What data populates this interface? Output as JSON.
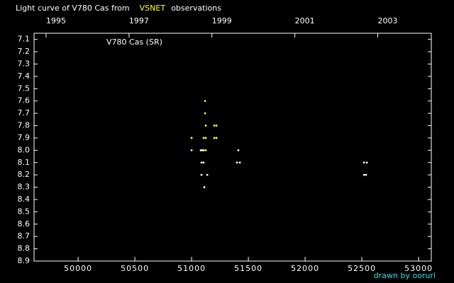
{
  "chart_data": {
    "type": "scatter",
    "title": "Light curve of V780 Cas from",
    "title_end": "observations",
    "annotation": "V780 Cas (SR)",
    "credit": "drawn by ooruri",
    "series": [
      {
        "name": "VSNET",
        "color": "#ffff33",
        "x": [
          51000,
          51000,
          51119,
          51119,
          51125,
          51106,
          51125,
          51094,
          51125,
          51200,
          51219,
          51200,
          51219
        ],
        "values": [
          7.9,
          8.0,
          7.6,
          7.7,
          7.8,
          7.9,
          7.9,
          8.0,
          8.0,
          7.8,
          7.8,
          7.9,
          7.9
        ]
      },
      {
        "color": "#ffffff",
        "x": [
          51081,
          51106,
          51087,
          51106,
          51087,
          51138,
          51112,
          51412,
          51400,
          51425,
          52519,
          52544,
          52519,
          52537
        ],
        "values": [
          8.0,
          8.0,
          8.1,
          8.1,
          8.2,
          8.2,
          8.3,
          8.0,
          8.1,
          8.1,
          8.1,
          8.1,
          8.2,
          8.2
        ]
      }
    ],
    "xlim": [
      49612,
      53112
    ],
    "xticks": [
      50000,
      50500,
      51000,
      51500,
      52000,
      52500,
      53000
    ],
    "x2lim": [
      49612,
      53112
    ],
    "x2ticks": [
      {
        "value": 49718,
        "label": "1995"
      },
      {
        "value": 50449,
        "label": "1997"
      },
      {
        "value": 51179,
        "label": "1999"
      },
      {
        "value": 51910,
        "label": "2001"
      },
      {
        "value": 52640,
        "label": "2003"
      }
    ],
    "ylim": [
      7.05,
      8.9
    ],
    "yinverted": true,
    "yticks": [
      7.1,
      7.2,
      7.3,
      7.4,
      7.5,
      7.6,
      7.7,
      7.8,
      7.9,
      {
        "value": 8,
        "label": "8.0"
      },
      8.1,
      8.2,
      8.3,
      8.4,
      8.5,
      8.6,
      8.7,
      8.8,
      8.9
    ]
  }
}
